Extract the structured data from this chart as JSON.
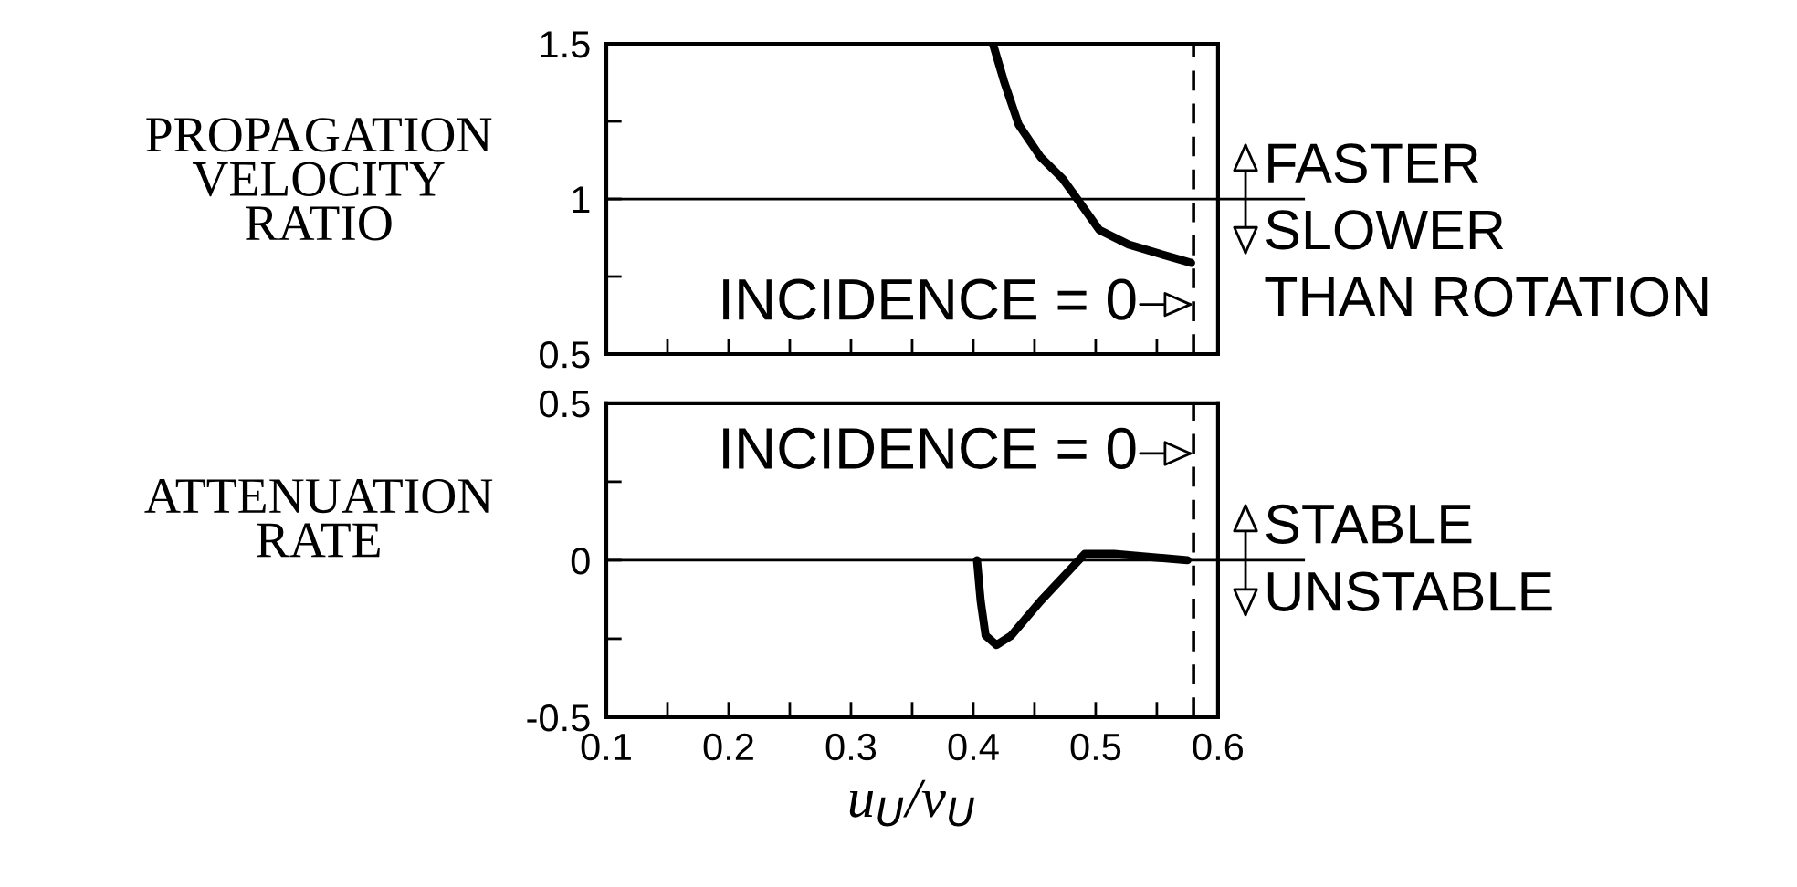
{
  "chart_data": [
    {
      "type": "line",
      "ylabel": "PROPAGATION\nVELOCITY\nRATIO",
      "xlim": [
        0.1,
        0.6
      ],
      "ylim": [
        0.5,
        1.5
      ],
      "xticks": [
        {
          "value": 0.1,
          "label": null
        },
        {
          "value": 0.15,
          "label": null
        },
        {
          "value": 0.2,
          "label": null
        },
        {
          "value": 0.25,
          "label": null
        },
        {
          "value": 0.3,
          "label": null
        },
        {
          "value": 0.35,
          "label": null
        },
        {
          "value": 0.4,
          "label": null
        },
        {
          "value": 0.45,
          "label": null
        },
        {
          "value": 0.5,
          "label": null
        },
        {
          "value": 0.55,
          "label": null
        },
        {
          "value": 0.6,
          "label": null
        }
      ],
      "yticks": [
        0.5,
        {
          "value": 0.75,
          "label": null
        },
        1,
        {
          "value": 1.25,
          "label": null
        },
        1.5
      ],
      "tick_labels": "y",
      "series": [
        {
          "color": "#000000",
          "x": [
            0.416,
            0.425,
            0.437,
            0.455,
            0.473,
            0.485,
            0.503,
            0.527,
            0.551,
            0.578
          ],
          "values": [
            1.5,
            1.38,
            1.24,
            1.135,
            1.065,
            1.0,
            0.9,
            0.853,
            0.825,
            0.794
          ]
        }
      ],
      "ref_lines": [
        {
          "axis": "y",
          "value": 1,
          "color": "#000000",
          "line_style": "solid"
        },
        {
          "axis": "x",
          "value": 0.58,
          "color": "#000000",
          "line_style": "dashed"
        }
      ],
      "annotations": [
        {
          "text": "INCIDENCE = 0",
          "x": 0.58,
          "y": 0.66
        },
        "FASTER",
        "SLOWER",
        "THAN ROTATION"
      ]
    },
    {
      "type": "line",
      "ylabel": "ATTENUATION\nRATE",
      "xlabel": "u$_{U}$/v$_{U}$",
      "xlim": [
        0.1,
        0.6
      ],
      "ylim": [
        -0.5,
        0.5
      ],
      "xticks": [
        0.1,
        {
          "value": 0.15,
          "label": null
        },
        0.2,
        {
          "value": 0.25,
          "label": null
        },
        0.3,
        {
          "value": 0.35,
          "label": null
        },
        0.4,
        {
          "value": 0.45,
          "label": null
        },
        0.5,
        {
          "value": 0.55,
          "label": null
        },
        0.6
      ],
      "yticks": [
        {
          "value": -0.5,
          "label": "-0.5"
        },
        {
          "value": -0.25,
          "label": null
        },
        0,
        {
          "value": 0.25,
          "label": null
        },
        0.5
      ],
      "series": [
        {
          "color": "#000000",
          "x": [
            0.403,
            0.406,
            0.41,
            0.419,
            0.431,
            0.455,
            0.479,
            0.491,
            0.515,
            0.575
          ],
          "values": [
            0,
            -0.13,
            -0.24,
            -0.27,
            -0.24,
            -0.13,
            -0.03,
            0.02,
            0.02,
            0.0
          ]
        }
      ],
      "ref_lines": [
        {
          "axis": "y",
          "value": 0,
          "color": "#000000",
          "line_style": "solid"
        },
        {
          "axis": "x",
          "value": 0.58,
          "color": "#000000",
          "line_style": "dashed"
        }
      ],
      "annotations": [
        {
          "text": "INCIDENCE = 0",
          "x": 0.58,
          "y": 0.34
        },
        "STABLE",
        "UNSTABLE"
      ]
    }
  ]
}
